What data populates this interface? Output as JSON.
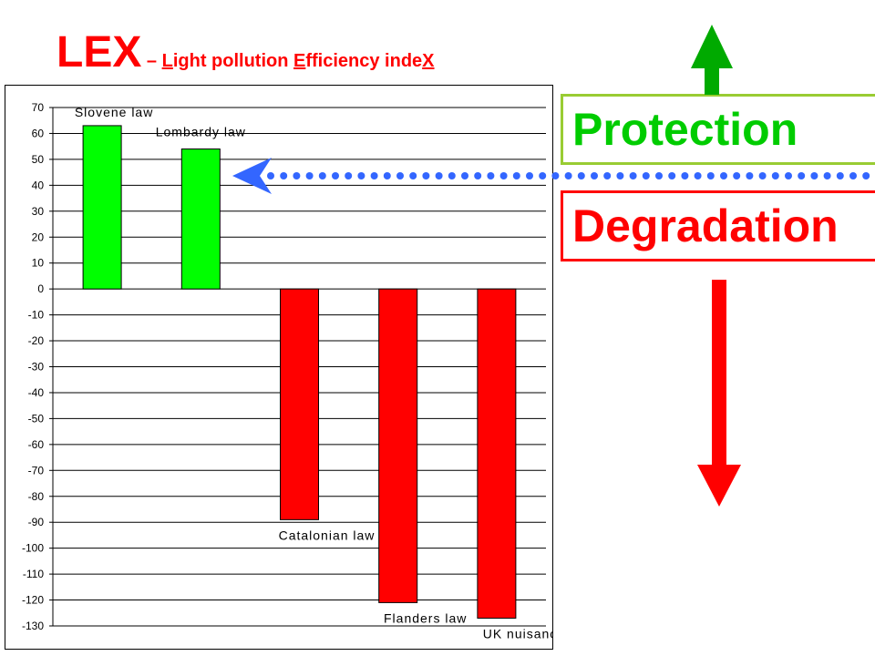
{
  "title": {
    "main": "LEX",
    "dash": " – ",
    "parts": [
      "L",
      "ight pollution ",
      "E",
      "fficiency inde",
      "X"
    ]
  },
  "legend": {
    "protection": "Protection",
    "degradation": "Degradation"
  },
  "colors": {
    "positive": "#00ff00",
    "negative": "#ff0000",
    "title": "#ff0000",
    "protection_text": "#00cc00",
    "protection_border": "#99cc33",
    "arrow_up": "#00aa00",
    "arrow_down": "#ff0000",
    "dotted_pointer": "#3366ff"
  },
  "chart_data": {
    "type": "bar",
    "title": "",
    "xlabel": "",
    "ylabel": "",
    "categories": [
      "Slovene law",
      "Lombardy law",
      "Catalonian law",
      "Flanders law",
      "UK nuisance"
    ],
    "values": [
      63,
      54,
      -89,
      -121,
      -127
    ],
    "ylim": [
      -130,
      70
    ],
    "yticks": [
      70,
      60,
      50,
      40,
      30,
      20,
      10,
      0,
      -10,
      -20,
      -30,
      -40,
      -50,
      -60,
      -70,
      -80,
      -90,
      -100,
      -110,
      -120,
      -130
    ],
    "grid": true,
    "legend": "none"
  }
}
